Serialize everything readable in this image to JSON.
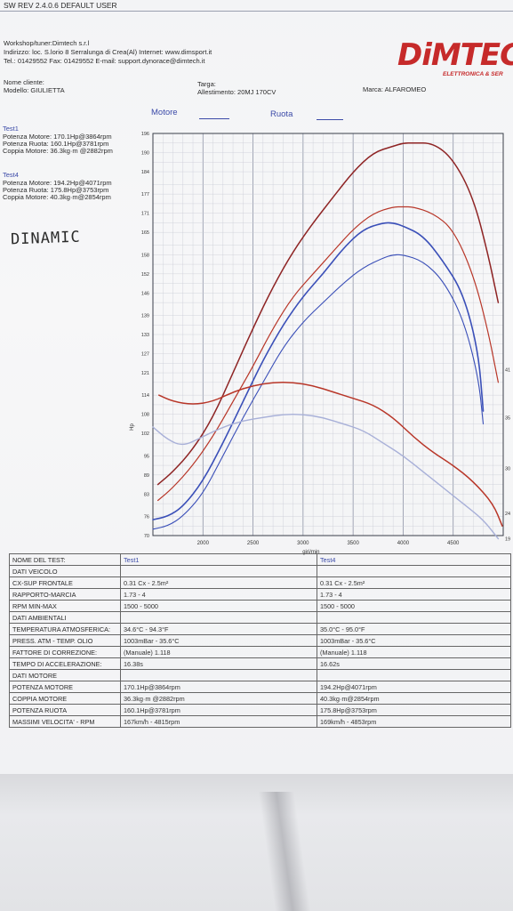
{
  "header": {
    "software": "SW REV 2.4.0.6   DEFAULT USER",
    "workshop": "Workshop/tuner:Dimtech s.r.l",
    "address": "Indirizzo: loc. S.lorio 8 Serralunga di Crea(Al) Internet: www.dimsport.it",
    "phone": "Tel.: 01429552 Fax: 01429552 E-mail: support.dynorace@dimtech.it",
    "client_label": "Nome cliente:",
    "model": "Modello: GIULIETTA",
    "plate_label": "Targa:",
    "trim": "Allestimento: 20MJ 170CV",
    "brand": "Marca: ALFAROMEO"
  },
  "logo": {
    "text": "DiMTEC",
    "subtitle": "ELETTRONICA & SER"
  },
  "handwriting": "DINAMIC",
  "legend": {
    "motore": "Motore",
    "ruota": "Ruota"
  },
  "tests": [
    {
      "name": "Test1",
      "lines": [
        "Potenza Motore: 170.1Hp@3864rpm",
        "Potenza Ruota: 160.1Hp@3781rpm",
        "Coppia Motore: 36.3kg·m @2882rpm"
      ]
    },
    {
      "name": "Test4",
      "lines": [
        "Potenza Motore: 194.2Hp@4071rpm",
        "Potenza Ruota: 175.8Hp@3753rpm",
        "Coppia Motore: 40.3kg·m@2854rpm"
      ]
    }
  ],
  "colors": {
    "test1": "#3a4fb8",
    "test4": "#b83628",
    "test1_light": "#a8b0d8",
    "test4_dark": "#8e2424"
  },
  "chart_data": {
    "type": "line",
    "title": "",
    "xlabel": "giri/min",
    "ylabel": "Hp",
    "xlim": [
      1500,
      5000
    ],
    "ylim": [
      70,
      196
    ],
    "x_ticks": [
      2000,
      2500,
      3000,
      3500,
      4000,
      4500
    ],
    "y_ticks": [
      70,
      73,
      76,
      80,
      83,
      86,
      89,
      92,
      95,
      99,
      102,
      105,
      108,
      111,
      114,
      118,
      121,
      124,
      127,
      130,
      133,
      136,
      139,
      143,
      146,
      149,
      152,
      155,
      158,
      161,
      165,
      168,
      171,
      174,
      177,
      180,
      184,
      187,
      190,
      193,
      196
    ],
    "y_tick_labels_shown": [
      70,
      76,
      83,
      89,
      95,
      102,
      108,
      114,
      121,
      127,
      133,
      139,
      146,
      152,
      158,
      165,
      171,
      177,
      184,
      190,
      196
    ],
    "right_axis_labels": [
      "41",
      "35",
      "30",
      "24",
      "19"
    ],
    "right_axis_label_values": [
      122,
      107,
      91,
      77,
      69
    ],
    "grid": true,
    "series": [
      {
        "name": "Potenza Motore Test4",
        "x": [
          1550,
          1700,
          1900,
          2100,
          2300,
          2500,
          2700,
          2900,
          3100,
          3300,
          3500,
          3700,
          3900,
          4000,
          4100,
          4300,
          4500,
          4700,
          4850,
          4950
        ],
        "values": [
          86,
          90,
          97,
          107,
          121,
          135,
          148,
          159,
          168,
          176,
          184,
          190,
          192,
          193,
          193,
          193,
          188,
          176,
          158,
          143
        ]
      },
      {
        "name": "Potenza Ruota Test4",
        "x": [
          1550,
          1700,
          1900,
          2100,
          2300,
          2500,
          2700,
          2900,
          3100,
          3300,
          3500,
          3700,
          3900,
          4000,
          4100,
          4300,
          4500,
          4700,
          4850,
          4950
        ],
        "values": [
          81,
          85,
          92,
          101,
          112,
          123,
          135,
          145,
          152,
          159,
          166,
          171,
          173,
          173,
          173,
          171,
          166,
          152,
          134,
          118
        ]
      },
      {
        "name": "Potenza Motore Test1",
        "x": [
          1500,
          1650,
          1800,
          2000,
          2200,
          2400,
          2600,
          2800,
          3000,
          3200,
          3400,
          3600,
          3800,
          3900,
          4000,
          4200,
          4400,
          4600,
          4750,
          4800
        ],
        "values": [
          75,
          76,
          79,
          87,
          99,
          112,
          125,
          136,
          145,
          152,
          160,
          166,
          168,
          168,
          167,
          164,
          156,
          146,
          128,
          109
        ]
      },
      {
        "name": "Potenza Ruota Test1",
        "x": [
          1500,
          1650,
          1800,
          2000,
          2200,
          2400,
          2600,
          2800,
          3000,
          3200,
          3400,
          3600,
          3800,
          3900,
          4000,
          4200,
          4400,
          4600,
          4750,
          4800
        ],
        "values": [
          72,
          73,
          76,
          83,
          95,
          107,
          118,
          129,
          137,
          143,
          149,
          154,
          157,
          158,
          158,
          156,
          150,
          138,
          120,
          105
        ]
      },
      {
        "name": "Coppia Motore Test4",
        "x": [
          1560,
          1700,
          1900,
          2100,
          2300,
          2500,
          2700,
          2900,
          3100,
          3300,
          3500,
          3700,
          3900,
          4100,
          4300,
          4500,
          4700,
          4900,
          4990
        ],
        "values": [
          114,
          112,
          111,
          112,
          115,
          117,
          118,
          118,
          117,
          115,
          113,
          111,
          107,
          101,
          96,
          92,
          87,
          80,
          73
        ]
      },
      {
        "name": "Coppia Motore Test1",
        "x": [
          1500,
          1650,
          1800,
          2000,
          2200,
          2400,
          2600,
          2800,
          3000,
          3200,
          3400,
          3600,
          3800,
          4000,
          4200,
          4400,
          4600,
          4800,
          4950
        ],
        "values": [
          104,
          100,
          98,
          101,
          104,
          106,
          107,
          108,
          108,
          107,
          105,
          103,
          99,
          95,
          90,
          85,
          80,
          75,
          69
        ]
      }
    ]
  },
  "table": {
    "header": [
      "NOME DEL TEST:",
      "Test1",
      "Test4"
    ],
    "rows": [
      [
        "DATI VEICOLO",
        "",
        ""
      ],
      [
        "CX-SUP FRONTALE",
        "0.31 Cx - 2.5m²",
        "0.31 Cx - 2.5m²"
      ],
      [
        "RAPPORTO-MARCIA",
        "1.73 - 4",
        "1.73 - 4"
      ],
      [
        "RPM MIN-MAX",
        "1500 - 5000",
        "1500 - 5000"
      ],
      [
        "DATI AMBIENTALI",
        "",
        ""
      ],
      [
        "TEMPERATURA ATMOSFERICA:",
        "34.6°C - 94.3°F",
        "35.0°C - 95.0°F"
      ],
      [
        "PRESS. ATM - TEMP. OLIO",
        "1003mBar - 35.6°C",
        "1003mBar - 35.6°C"
      ],
      [
        "FATTORE DI CORREZIONE:",
        "(Manuale) 1.118",
        "(Manuale) 1.118"
      ],
      [
        "TEMPO DI ACCELERAZIONE:",
        "16.38s",
        "16.62s"
      ],
      [
        "DATI MOTORE",
        "",
        ""
      ],
      [
        "POTENZA MOTORE",
        "170.1Hp@3864rpm",
        "194.2Hp@4071rpm"
      ],
      [
        "COPPIA MOTORE",
        "36.3kg·m @2882rpm",
        "40.3kg·m@2854rpm"
      ],
      [
        "POTENZA RUOTA",
        "160.1Hp@3781rpm",
        "175.8Hp@3753rpm"
      ],
      [
        "MASSIMI VELOCITA' - RPM",
        "167km/h - 4815rpm",
        "169km/h - 4853rpm"
      ]
    ]
  }
}
